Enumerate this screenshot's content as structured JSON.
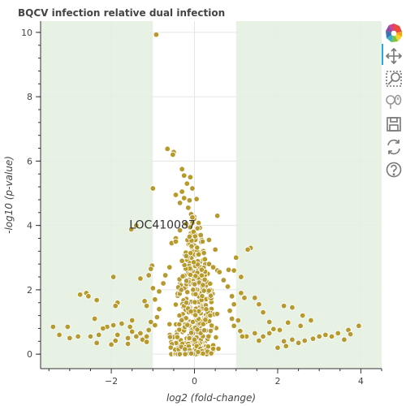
{
  "chart_data": {
    "type": "scatter",
    "title": "BQCV infection relative dual infection",
    "xlabel": "log2 (fold-change)",
    "ylabel": "-log10 (p-value)",
    "xlim": [
      -3.7,
      4.5
    ],
    "ylim": [
      -0.45,
      10.35
    ],
    "xticks": [
      -2,
      0,
      2,
      4
    ],
    "yticks": [
      0,
      2,
      4,
      6,
      8,
      10
    ],
    "grid": true,
    "shaded_regions": [
      {
        "x_from": -3.7,
        "x_to": -1,
        "color": "#e3f0e0"
      },
      {
        "x_from": 1,
        "x_to": 4.5,
        "color": "#e3f0e0"
      }
    ],
    "marker_color": "#b79a2e",
    "annotations": [
      {
        "text": "LOC410087",
        "x": -1.45,
        "y": 3.9
      }
    ],
    "series": [
      {
        "points": [
          [
            -0.92,
            9.93
          ],
          [
            -0.65,
            6.38
          ],
          [
            -0.5,
            6.28
          ],
          [
            -0.52,
            6.2
          ],
          [
            -0.3,
            5.75
          ],
          [
            -0.25,
            5.55
          ],
          [
            -0.1,
            5.5
          ],
          [
            -0.18,
            5.3
          ],
          [
            -0.05,
            5.15
          ],
          [
            -0.3,
            5.05
          ],
          [
            -0.45,
            4.95
          ],
          [
            -0.25,
            4.85
          ],
          [
            -0.12,
            4.78
          ],
          [
            0.05,
            4.82
          ],
          [
            -0.35,
            4.7
          ],
          [
            -0.15,
            4.55
          ],
          [
            0.55,
            4.3
          ],
          [
            -0.08,
            4.35
          ],
          [
            -0.05,
            4.25
          ],
          [
            -0.2,
            4.05
          ],
          [
            -0.35,
            3.85
          ],
          [
            -0.45,
            3.6
          ],
          [
            -0.12,
            3.65
          ],
          [
            0.15,
            3.7
          ],
          [
            0.35,
            3.55
          ],
          [
            -1.0,
            5.15
          ],
          [
            -1.4,
            4.0
          ],
          [
            -1.52,
            3.88
          ],
          [
            -0.55,
            3.45
          ],
          [
            -0.45,
            3.5
          ],
          [
            0.5,
            3.25
          ],
          [
            1.35,
            3.3
          ],
          [
            1.28,
            3.25
          ],
          [
            1.0,
            3.0
          ],
          [
            0.82,
            2.62
          ],
          [
            0.55,
            2.6
          ],
          [
            0.95,
            2.6
          ],
          [
            -1.02,
            2.75
          ],
          [
            -1.05,
            2.65
          ],
          [
            -1.1,
            2.45
          ],
          [
            1.12,
            2.4
          ],
          [
            -1.3,
            2.35
          ],
          [
            -1.0,
            2.05
          ],
          [
            1.12,
            1.9
          ],
          [
            1.2,
            1.75
          ],
          [
            -1.2,
            1.65
          ],
          [
            -1.15,
            1.5
          ],
          [
            1.45,
            1.75
          ],
          [
            1.55,
            1.55
          ],
          [
            -1.85,
            1.6
          ],
          [
            -1.9,
            1.5
          ],
          [
            -1.95,
            2.4
          ],
          [
            -2.6,
            1.9
          ],
          [
            -2.75,
            1.85
          ],
          [
            -2.55,
            1.8
          ],
          [
            -2.35,
            1.68
          ],
          [
            2.15,
            1.5
          ],
          [
            2.35,
            1.45
          ],
          [
            1.65,
            1.3
          ],
          [
            2.6,
            1.2
          ],
          [
            -2.4,
            1.1
          ],
          [
            2.8,
            1.05
          ],
          [
            -1.5,
            1.05
          ],
          [
            1.8,
            1.0
          ],
          [
            2.25,
            0.98
          ],
          [
            2.55,
            0.88
          ],
          [
            -1.75,
            0.95
          ],
          [
            -1.95,
            0.9
          ],
          [
            -2.1,
            0.85
          ],
          [
            -2.3,
            0.6
          ],
          [
            -2.5,
            0.55
          ],
          [
            -2.8,
            0.55
          ],
          [
            -3.0,
            0.5
          ],
          [
            -3.25,
            0.6
          ],
          [
            -3.05,
            0.85
          ],
          [
            -3.4,
            0.85
          ],
          [
            -2.2,
            0.8
          ],
          [
            -1.85,
            0.6
          ],
          [
            -1.6,
            0.5
          ],
          [
            -1.4,
            0.55
          ],
          [
            -1.25,
            0.45
          ],
          [
            -1.15,
            0.38
          ],
          [
            -1.6,
            0.32
          ],
          [
            -1.9,
            0.42
          ],
          [
            -1.5,
            0.7
          ],
          [
            -1.3,
            0.65
          ],
          [
            -1.55,
            0.85
          ],
          [
            1.25,
            0.55
          ],
          [
            1.45,
            0.65
          ],
          [
            1.55,
            0.42
          ],
          [
            1.65,
            0.55
          ],
          [
            1.8,
            0.65
          ],
          [
            1.9,
            0.78
          ],
          [
            2.05,
            0.75
          ],
          [
            2.15,
            0.4
          ],
          [
            2.35,
            0.45
          ],
          [
            2.5,
            0.35
          ],
          [
            2.65,
            0.42
          ],
          [
            2.85,
            0.48
          ],
          [
            3.0,
            0.55
          ],
          [
            3.15,
            0.6
          ],
          [
            3.3,
            0.55
          ],
          [
            3.45,
            0.65
          ],
          [
            3.7,
            0.75
          ],
          [
            3.75,
            0.62
          ],
          [
            3.6,
            0.45
          ],
          [
            3.95,
            0.88
          ],
          [
            2.0,
            0.2
          ],
          [
            2.2,
            0.25
          ],
          [
            -2.0,
            0.3
          ],
          [
            -2.35,
            0.35
          ],
          [
            -0.3,
            2.9
          ],
          [
            -0.2,
            3.05
          ],
          [
            0.1,
            3.1
          ],
          [
            0.25,
            2.95
          ],
          [
            0.35,
            2.8
          ],
          [
            0.45,
            2.7
          ],
          [
            0.6,
            2.55
          ],
          [
            -0.6,
            2.7
          ],
          [
            -0.7,
            2.45
          ],
          [
            -0.75,
            2.2
          ],
          [
            0.7,
            2.3
          ],
          [
            0.8,
            2.1
          ],
          [
            -0.85,
            1.95
          ],
          [
            0.9,
            1.8
          ],
          [
            -0.95,
            1.7
          ],
          [
            0.95,
            1.55
          ],
          [
            -0.85,
            1.4
          ],
          [
            0.85,
            1.35
          ],
          [
            -0.9,
            1.15
          ],
          [
            0.9,
            1.1
          ],
          [
            -0.95,
            0.9
          ],
          [
            0.95,
            0.88
          ],
          [
            -1.05,
            1.0
          ],
          [
            1.05,
            1.05
          ],
          [
            -1.1,
            0.75
          ],
          [
            1.1,
            0.72
          ],
          [
            -1.15,
            0.55
          ],
          [
            1.15,
            0.55
          ]
        ],
        "cloud": {
          "x_spread": 0.62,
          "y_peak": 3.4,
          "count": 460,
          "color": "#b79a2e"
        }
      }
    ]
  },
  "toolbar": {
    "tools": [
      {
        "name": "bokeh-logo",
        "icon": "bokeh-logo-icon"
      },
      {
        "name": "pan-tool",
        "icon": "pan-icon",
        "active": true
      },
      {
        "name": "box-zoom-tool",
        "icon": "box-zoom-icon"
      },
      {
        "name": "wheel-zoom-tool",
        "icon": "wheel-zoom-icon"
      },
      {
        "name": "save-tool",
        "icon": "save-icon"
      },
      {
        "name": "reset-tool",
        "icon": "reset-icon"
      },
      {
        "name": "help-tool",
        "icon": "help-icon"
      }
    ]
  }
}
